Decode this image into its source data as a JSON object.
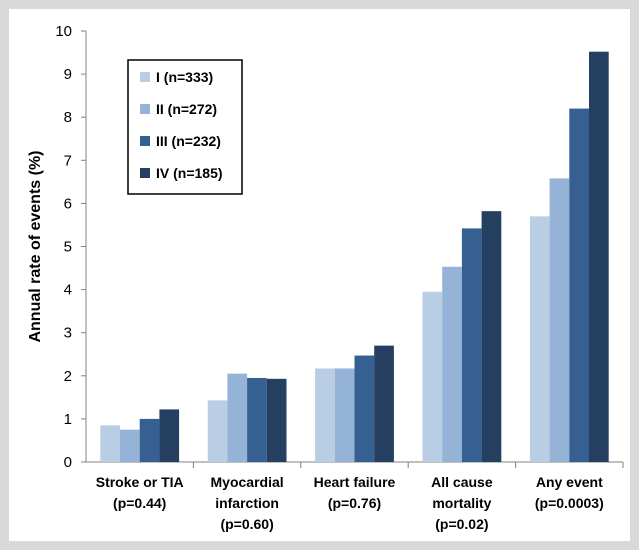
{
  "chart_data": {
    "type": "bar",
    "ylabel": "Annual rate of events (%)",
    "xlabel": "",
    "ylim": [
      0,
      10
    ],
    "yticks": [
      0,
      1,
      2,
      3,
      4,
      5,
      6,
      7,
      8,
      9,
      10
    ],
    "grid": false,
    "legend_position": "top-left",
    "categories": [
      [
        "Stroke or TIA",
        "(p=0.44)"
      ],
      [
        "Myocardial",
        "infarction",
        "(p=0.60)"
      ],
      [
        "Heart failure",
        "(p=0.76)"
      ],
      [
        "All cause",
        "mortality",
        "(p=0.02)"
      ],
      [
        "Any event",
        "(p=0.0003)"
      ]
    ],
    "series": [
      {
        "name": "I (n=333)",
        "color": "#b9cde5",
        "values": [
          0.85,
          1.43,
          2.17,
          3.95,
          5.7
        ]
      },
      {
        "name": "II (n=272)",
        "color": "#95b3d7",
        "values": [
          0.75,
          2.05,
          2.17,
          4.53,
          6.58
        ]
      },
      {
        "name": "III (n=232)",
        "color": "#376092",
        "values": [
          1.0,
          1.95,
          2.47,
          5.42,
          8.2
        ]
      },
      {
        "name": "IV (n=185)",
        "color": "#243f60",
        "values": [
          1.22,
          1.93,
          2.7,
          5.82,
          9.52
        ]
      }
    ]
  }
}
